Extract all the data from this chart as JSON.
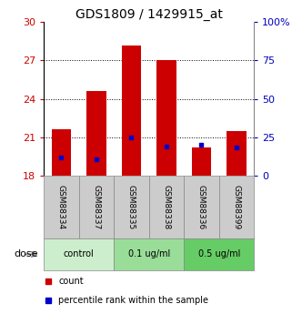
{
  "title": "GDS1809 / 1429915_at",
  "samples": [
    "GSM88334",
    "GSM88337",
    "GSM88335",
    "GSM88338",
    "GSM88336",
    "GSM88399"
  ],
  "red_values": [
    21.6,
    24.6,
    28.2,
    27.0,
    20.2,
    21.5
  ],
  "blue_values": [
    19.4,
    19.3,
    21.0,
    20.3,
    20.4,
    20.2
  ],
  "ylim": [
    18,
    30
  ],
  "yticks": [
    18,
    21,
    24,
    27,
    30
  ],
  "y2ticks": [
    0,
    25,
    50,
    75,
    100
  ],
  "y2labels": [
    "0",
    "25",
    "50",
    "75",
    "100%"
  ],
  "bar_width": 0.55,
  "bar_color": "#cc0000",
  "blue_color": "#0000cc",
  "groups": [
    {
      "label": "control",
      "indices": [
        0,
        1
      ],
      "color": "#cceecc"
    },
    {
      "label": "0.1 ug/ml",
      "indices": [
        2,
        3
      ],
      "color": "#99dd99"
    },
    {
      "label": "0.5 ug/ml",
      "indices": [
        4,
        5
      ],
      "color": "#66cc66"
    }
  ],
  "dose_label": "dose",
  "legend_count": "count",
  "legend_percentile": "percentile rank within the sample",
  "title_fontsize": 10,
  "axis_color_left": "#cc0000",
  "axis_color_right": "#0000bb",
  "sample_label_bg": "#cccccc",
  "sample_label_border": "#888888"
}
